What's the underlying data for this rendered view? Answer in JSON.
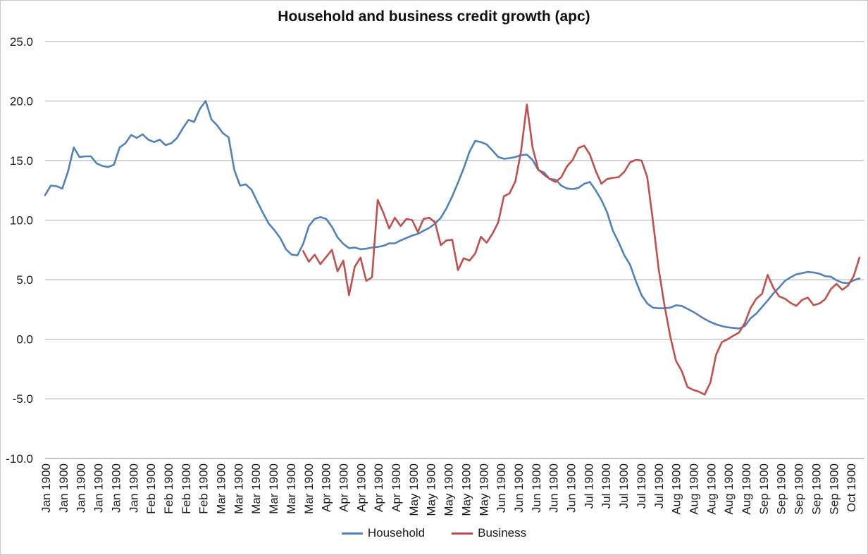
{
  "chart_data": {
    "type": "line",
    "title": "Household and business credit growth (apc)",
    "xlabel": "",
    "ylabel": "",
    "ylim": [
      -10,
      25
    ],
    "grid": true,
    "legend_position": "bottom",
    "y_ticks": [
      "25.0",
      "20.0",
      "15.0",
      "10.0",
      "5.0",
      "0.0",
      "-5.0",
      "-10.0"
    ],
    "x_labels_rotation": -90,
    "x_labels": [
      "Jan 1900",
      "Jan 1900",
      "Jan 1900",
      "Jan 1900",
      "Jan 1900",
      "Jan 1900",
      "Feb 1900",
      "Feb 1900",
      "Feb 1900",
      "Feb 1900",
      "Mar 1900",
      "Mar 1900",
      "Mar 1900",
      "Mar 1900",
      "Mar 1900",
      "Mar 1900",
      "Apr 1900",
      "Apr 1900",
      "Apr 1900",
      "Apr 1900",
      "Apr 1900",
      "May 1900",
      "May 1900",
      "May 1900",
      "May 1900",
      "May 1900",
      "Jun 1900",
      "Jun 1900",
      "Jun 1900",
      "Jun 1900",
      "Jun 1900",
      "Jul 1900",
      "Jul 1900",
      "Jul 1900",
      "Jul 1900",
      "Jul 1900",
      "Aug 1900",
      "Aug 1900",
      "Aug 1900",
      "Aug 1900",
      "Aug 1900",
      "Sep 1900",
      "Sep 1900",
      "Sep 1900",
      "Sep 1900",
      "Sep 1900",
      "Oct 1900"
    ],
    "series": [
      {
        "name": "Household",
        "color": "#4F81BD",
        "values": [
          12.1,
          12.9,
          12.85,
          12.65,
          14.1,
          16.1,
          15.3,
          15.35,
          15.35,
          14.75,
          14.55,
          14.45,
          14.65,
          16.1,
          16.45,
          17.15,
          16.9,
          17.2,
          16.75,
          16.55,
          16.75,
          16.3,
          16.45,
          16.9,
          17.7,
          18.4,
          18.25,
          19.35,
          20.0,
          18.45,
          17.95,
          17.3,
          16.95,
          14.2,
          12.9,
          13.0,
          12.55,
          11.55,
          10.6,
          9.7,
          9.15,
          8.5,
          7.55,
          7.1,
          7.05,
          8.0,
          9.5,
          10.1,
          10.25,
          10.1,
          9.45,
          8.55,
          8.0,
          7.65,
          7.7,
          7.55,
          7.6,
          7.7,
          7.75,
          7.85,
          8.05,
          8.05,
          8.3,
          8.5,
          8.7,
          8.85,
          9.1,
          9.35,
          9.7,
          10.2,
          11.0,
          12.0,
          13.15,
          14.35,
          15.75,
          16.65,
          16.55,
          16.35,
          15.85,
          15.3,
          15.15,
          15.2,
          15.3,
          15.45,
          15.5,
          15.05,
          14.2,
          14.0,
          13.45,
          13.4,
          12.9,
          12.65,
          12.6,
          12.7,
          13.05,
          13.2,
          12.5,
          11.7,
          10.65,
          9.1,
          8.15,
          7.05,
          6.25,
          4.9,
          3.7,
          3.0,
          2.65,
          2.6,
          2.6,
          2.65,
          2.85,
          2.8,
          2.55,
          2.3,
          2.0,
          1.7,
          1.45,
          1.25,
          1.1,
          1.0,
          0.95,
          0.9,
          1.1,
          1.75,
          2.15,
          2.7,
          3.25,
          3.85,
          4.35,
          4.9,
          5.2,
          5.45,
          5.55,
          5.65,
          5.6,
          5.5,
          5.3,
          5.25,
          4.95,
          4.75,
          4.7,
          4.95,
          5.1
        ]
      },
      {
        "name": "Business",
        "color": "#C0504D",
        "values": [
          null,
          null,
          null,
          null,
          null,
          null,
          null,
          null,
          null,
          null,
          null,
          null,
          null,
          null,
          null,
          null,
          null,
          null,
          null,
          null,
          null,
          null,
          null,
          null,
          null,
          null,
          null,
          null,
          null,
          null,
          null,
          null,
          null,
          null,
          null,
          null,
          null,
          null,
          null,
          null,
          null,
          null,
          null,
          null,
          null,
          7.4,
          6.5,
          7.1,
          6.3,
          6.9,
          7.5,
          5.7,
          6.6,
          3.7,
          6.1,
          6.85,
          4.9,
          5.2,
          11.7,
          10.6,
          9.3,
          10.2,
          9.5,
          10.1,
          10.0,
          9.0,
          10.1,
          10.2,
          9.8,
          7.9,
          8.3,
          8.35,
          5.8,
          6.8,
          6.6,
          7.2,
          8.6,
          8.1,
          8.85,
          9.8,
          12.0,
          12.25,
          13.25,
          15.8,
          19.7,
          16.1,
          14.25,
          13.8,
          13.45,
          13.2,
          13.6,
          14.5,
          15.05,
          16.05,
          16.25,
          15.5,
          14.15,
          13.05,
          13.45,
          13.55,
          13.6,
          14.05,
          14.85,
          15.05,
          15.0,
          13.6,
          9.9,
          5.85,
          2.85,
          0.25,
          -1.8,
          -2.65,
          -4.0,
          -4.25,
          -4.4,
          -4.65,
          -3.65,
          -1.3,
          -0.25,
          0.0,
          0.3,
          0.55,
          1.35,
          2.6,
          3.4,
          3.8,
          5.4,
          4.3,
          3.6,
          3.4,
          3.05,
          2.8,
          3.3,
          3.5,
          2.85,
          3.0,
          3.35,
          4.2,
          4.65,
          4.15,
          4.5,
          5.3,
          6.85
        ]
      }
    ]
  }
}
